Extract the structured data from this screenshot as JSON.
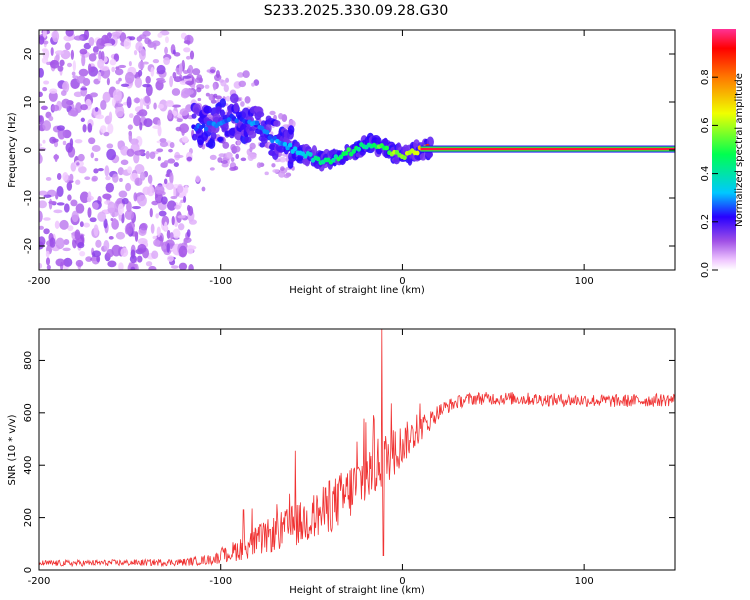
{
  "title": "S233.2025.330.09.28.G30",
  "colors": {
    "snr_line": "#f03232",
    "axis": "#000000",
    "background": "#ffffff",
    "colormap": [
      "#ffffff",
      "#f0c8ff",
      "#a050e6",
      "#2800ff",
      "#00c8ff",
      "#00ff50",
      "#f0ff00",
      "#ff7800",
      "#ff0000",
      "#ff3296"
    ]
  },
  "chart_data": [
    {
      "type": "heatmap",
      "name": "spectrogram",
      "xlabel": "Height of straight line (km)",
      "ylabel": "Frequency (Hz)",
      "xlim": [
        -200,
        150
      ],
      "ylim": [
        -25,
        25
      ],
      "xticks": [
        -200,
        -100,
        0,
        100
      ],
      "yticks": [
        -20,
        -10,
        0,
        10,
        20
      ],
      "xtick_labels": [
        "-200",
        "-100",
        "0",
        "100"
      ],
      "ytick_labels": [
        "-20",
        "-10",
        "0",
        "10",
        "20"
      ],
      "colorbar": {
        "label": "Normalized spectral amplitude",
        "range": [
          0,
          1
        ],
        "ticks": [
          0.0,
          0.2,
          0.4,
          0.6,
          0.8
        ],
        "tick_labels": [
          "0.0",
          "0.2",
          "0.4",
          "0.6",
          "0.8"
        ]
      },
      "noise_region_km": [
        -200,
        -115
      ],
      "carrier_amplitude": 0.95,
      "carrier_track": {
        "x": [
          -115,
          -105,
          -95,
          -88,
          -82,
          -78,
          -74,
          -70,
          -66,
          -62,
          -58,
          -54,
          -50,
          -46,
          -42,
          -38,
          -34,
          -30,
          -26,
          -22,
          -18,
          -14,
          -10,
          -6,
          -2,
          2,
          6,
          10,
          14,
          20,
          40,
          60,
          80,
          100,
          120,
          150
        ],
        "freq": [
          5,
          5,
          7,
          6,
          6,
          5,
          3,
          2,
          1,
          0.5,
          -0.5,
          -1,
          -1.5,
          -2,
          -2.2,
          -2,
          -1.5,
          -0.5,
          0,
          0.8,
          1.5,
          1,
          0.3,
          -0.5,
          -1,
          -1.2,
          -0.5,
          0,
          0.3,
          0.3,
          0.2,
          0.2,
          0.2,
          0.2,
          0.2,
          0.2
        ],
        "amplitude": [
          0.25,
          0.3,
          0.28,
          0.25,
          0.3,
          0.28,
          0.28,
          0.3,
          0.3,
          0.35,
          0.35,
          0.35,
          0.4,
          0.45,
          0.45,
          0.45,
          0.5,
          0.5,
          0.5,
          0.45,
          0.45,
          0.55,
          0.55,
          0.6,
          0.6,
          0.6,
          0.65,
          0.7,
          0.85,
          0.95,
          0.95,
          0.95,
          0.95,
          0.95,
          0.95,
          0.95
        ]
      }
    },
    {
      "type": "line",
      "name": "snr",
      "xlabel": "Height of straight line (km)",
      "ylabel": "SNR (10 * v/v)",
      "xlim": [
        -200,
        150
      ],
      "ylim": [
        0,
        920
      ],
      "xticks": [
        -200,
        -100,
        0,
        100
      ],
      "yticks": [
        0,
        200,
        400,
        600,
        800
      ],
      "xtick_labels": [
        "-200",
        "-100",
        "0",
        "100"
      ],
      "ytick_labels": [
        "0",
        "200",
        "400",
        "600",
        "800"
      ],
      "series": [
        {
          "name": "SNR",
          "x": [
            -200,
            -150,
            -120,
            -105,
            -100,
            -90,
            -80,
            -70,
            -60,
            -55,
            -50,
            -45,
            -40,
            -35,
            -30,
            -25,
            -20,
            -15,
            -10,
            -5,
            0,
            5,
            10,
            15,
            20,
            25,
            30,
            35,
            40,
            60,
            80,
            100,
            120,
            150
          ],
          "y": [
            25,
            28,
            30,
            40,
            50,
            80,
            110,
            140,
            170,
            180,
            200,
            215,
            240,
            265,
            290,
            330,
            360,
            390,
            420,
            450,
            480,
            510,
            540,
            570,
            605,
            625,
            640,
            650,
            655,
            655,
            650,
            648,
            645,
            650
          ],
          "noise_amplitude": [
            12,
            12,
            14,
            20,
            25,
            45,
            60,
            70,
            80,
            85,
            90,
            95,
            100,
            105,
            110,
            115,
            115,
            110,
            105,
            95,
            80,
            65,
            50,
            40,
            30,
            28,
            25,
            25,
            25,
            25,
            25,
            25,
            25,
            25
          ],
          "spikes": [
            {
              "x": -87.5,
              "y": 230
            },
            {
              "x": -59,
              "y": 455
            },
            {
              "x": -40,
              "y": 340
            },
            {
              "x": -25,
              "y": 490
            },
            {
              "x": -11.5,
              "y": 925
            },
            {
              "x": -10.5,
              "y": 55
            }
          ]
        }
      ]
    }
  ]
}
